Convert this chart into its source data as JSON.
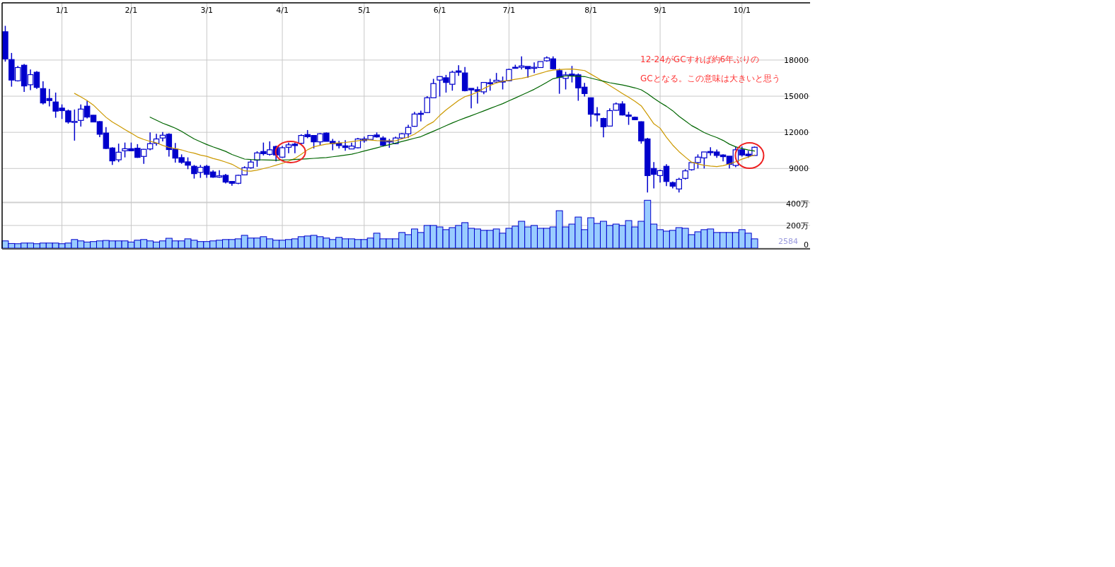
{
  "chart_data": [
    {
      "type": "candlestick",
      "color": "#0000cc",
      "categories": [
        null,
        null,
        null,
        null,
        null,
        null,
        null,
        null,
        null,
        "1/1",
        null,
        null,
        null,
        null,
        null,
        null,
        null,
        null,
        null,
        null,
        "2/1",
        null,
        null,
        null,
        null,
        null,
        null,
        null,
        null,
        null,
        null,
        null,
        "3/1",
        null,
        null,
        null,
        null,
        null,
        null,
        null,
        null,
        null,
        null,
        null,
        "4/1",
        null,
        null,
        null,
        null,
        null,
        null,
        null,
        null,
        null,
        null,
        null,
        null,
        "5/1",
        null,
        null,
        null,
        null,
        null,
        null,
        null,
        null,
        null,
        null,
        null,
        "6/1",
        null,
        null,
        null,
        null,
        null,
        null,
        null,
        null,
        null,
        null,
        "7/1",
        null,
        null,
        null,
        null,
        null,
        null,
        null,
        null,
        null,
        null,
        null,
        null,
        "8/1",
        null,
        null,
        null,
        null,
        null,
        null,
        null,
        null,
        null,
        null,
        "9/1",
        null,
        null,
        null,
        null,
        null,
        null,
        null,
        null,
        null,
        null,
        null,
        null,
        "10/1",
        null,
        null
      ],
      "ohlc": [
        [
          20350,
          20840,
          17870,
          18100
        ],
        [
          18040,
          18590,
          15790,
          16340
        ],
        [
          16280,
          17510,
          16220,
          17380
        ],
        [
          17570,
          17670,
          15360,
          15850
        ],
        [
          15950,
          17220,
          15500,
          16790
        ],
        [
          16990,
          17080,
          15600,
          15730
        ],
        [
          15630,
          16240,
          14320,
          14440
        ],
        [
          14810,
          15600,
          14150,
          14640
        ],
        [
          14520,
          15300,
          13210,
          13760
        ],
        [
          14010,
          14320,
          13110,
          13800
        ],
        [
          13780,
          13890,
          12720,
          12860
        ],
        [
          12820,
          13890,
          11310,
          12910
        ],
        [
          12990,
          14320,
          12480,
          13930
        ],
        [
          14170,
          14620,
          13150,
          13270
        ],
        [
          13420,
          13440,
          12840,
          12860
        ],
        [
          12890,
          12930,
          11600,
          11840
        ],
        [
          11940,
          12430,
          10620,
          10660
        ],
        [
          10700,
          10760,
          9290,
          9630
        ],
        [
          9720,
          11060,
          9530,
          10350
        ],
        [
          10470,
          11150,
          9920,
          10640
        ],
        [
          10640,
          11150,
          10430,
          10470
        ],
        [
          10680,
          11020,
          9880,
          9920
        ],
        [
          10000,
          10620,
          9390,
          10590
        ],
        [
          10620,
          11990,
          10510,
          11060
        ],
        [
          11090,
          11880,
          10900,
          11450
        ],
        [
          11530,
          12030,
          11250,
          11760
        ],
        [
          11840,
          11920,
          9980,
          10570
        ],
        [
          10610,
          11110,
          9490,
          9860
        ],
        [
          9900,
          10170,
          9390,
          9510
        ],
        [
          9550,
          9920,
          8940,
          9270
        ],
        [
          9180,
          9290,
          8160,
          8570
        ],
        [
          8670,
          9290,
          8220,
          9100
        ],
        [
          9180,
          9290,
          8220,
          8510
        ],
        [
          8710,
          8860,
          8220,
          8280
        ],
        [
          8280,
          8860,
          8220,
          8390
        ],
        [
          8430,
          8550,
          7750,
          7870
        ],
        [
          7920,
          7920,
          7570,
          7770
        ],
        [
          7770,
          8470,
          7690,
          8430
        ],
        [
          8470,
          9180,
          8430,
          9060
        ],
        [
          9060,
          9720,
          8980,
          9530
        ],
        [
          9690,
          10430,
          9140,
          10290
        ],
        [
          10410,
          11150,
          10080,
          10230
        ],
        [
          10170,
          11250,
          10080,
          10550
        ],
        [
          10820,
          10900,
          9590,
          10120
        ],
        [
          9940,
          10860,
          9880,
          10720
        ],
        [
          10760,
          11150,
          10270,
          10960
        ],
        [
          11020,
          11150,
          10270,
          10900
        ],
        [
          11090,
          11840,
          11020,
          11740
        ],
        [
          11820,
          12190,
          11510,
          11640
        ],
        [
          11740,
          11740,
          10660,
          11210
        ],
        [
          11210,
          11940,
          10900,
          11880
        ],
        [
          11940,
          11990,
          11250,
          11250
        ],
        [
          11250,
          11450,
          10510,
          11060
        ],
        [
          11090,
          11290,
          10660,
          10900
        ],
        [
          10880,
          11350,
          10470,
          10740
        ],
        [
          10620,
          11150,
          10620,
          10860
        ],
        [
          10720,
          11540,
          10660,
          11450
        ],
        [
          11450,
          11640,
          11150,
          11310
        ],
        [
          11410,
          11740,
          11410,
          11740
        ],
        [
          11780,
          11990,
          11560,
          11620
        ],
        [
          11530,
          11680,
          10820,
          10920
        ],
        [
          11290,
          11450,
          10720,
          11210
        ],
        [
          11060,
          11640,
          11020,
          11530
        ],
        [
          11530,
          11940,
          11450,
          11880
        ],
        [
          11880,
          12620,
          11530,
          12410
        ],
        [
          12500,
          13700,
          12460,
          13520
        ],
        [
          13580,
          13800,
          12910,
          13520
        ],
        [
          13640,
          15010,
          13600,
          14870
        ],
        [
          14870,
          16440,
          14870,
          16050
        ],
        [
          16340,
          16630,
          14970,
          16630
        ],
        [
          16530,
          16770,
          15300,
          16140
        ],
        [
          15990,
          17120,
          15460,
          16990
        ],
        [
          17100,
          17570,
          16690,
          16990
        ],
        [
          16930,
          17420,
          15400,
          15460
        ],
        [
          15650,
          15650,
          13990,
          15520
        ],
        [
          15540,
          15790,
          14380,
          15400
        ],
        [
          15360,
          16180,
          15170,
          16140
        ],
        [
          16120,
          16440,
          15460,
          16030
        ],
        [
          16180,
          16930,
          16100,
          16320
        ],
        [
          16260,
          16630,
          15560,
          16220
        ],
        [
          16280,
          17280,
          16240,
          17220
        ],
        [
          17400,
          17610,
          17320,
          17320
        ],
        [
          17400,
          18300,
          17220,
          17510
        ],
        [
          17470,
          17470,
          16530,
          17280
        ],
        [
          17320,
          17810,
          16930,
          17400
        ],
        [
          17380,
          17870,
          17380,
          17870
        ],
        [
          17940,
          18300,
          17870,
          18180
        ],
        [
          18100,
          18300,
          17220,
          17280
        ],
        [
          17120,
          17280,
          15200,
          16570
        ],
        [
          16480,
          17020,
          15560,
          16770
        ],
        [
          16830,
          17510,
          16140,
          16690
        ],
        [
          16770,
          16890,
          14620,
          15690
        ],
        [
          15750,
          16100,
          14970,
          15220
        ],
        [
          14870,
          14870,
          12460,
          13500
        ],
        [
          13540,
          14090,
          12910,
          13440
        ],
        [
          13150,
          13210,
          11580,
          12460
        ],
        [
          12520,
          13990,
          12520,
          13800
        ],
        [
          13830,
          14480,
          13800,
          14360
        ],
        [
          14360,
          14580,
          13400,
          13440
        ],
        [
          13440,
          13700,
          12620,
          13330
        ],
        [
          13250,
          13310,
          13010,
          13050
        ],
        [
          12880,
          12910,
          11060,
          11290
        ],
        [
          11450,
          11540,
          7000,
          8410
        ],
        [
          9000,
          9530,
          7340,
          8510
        ],
        [
          8410,
          8900,
          7830,
          8820
        ],
        [
          9180,
          9350,
          7530,
          7920
        ],
        [
          7830,
          7920,
          7340,
          7530
        ],
        [
          7300,
          8220,
          7000,
          8100
        ],
        [
          8180,
          8940,
          8080,
          8800
        ],
        [
          8900,
          9530,
          8820,
          9490
        ],
        [
          9490,
          10170,
          9000,
          9940
        ],
        [
          9880,
          10370,
          9000,
          10370
        ],
        [
          10410,
          10760,
          10080,
          10310
        ],
        [
          10370,
          10570,
          9880,
          10080
        ],
        [
          10120,
          10170,
          9590,
          9980
        ],
        [
          10020,
          10020,
          9000,
          9350
        ],
        [
          9250,
          10820,
          9100,
          10550
        ],
        [
          10550,
          10820,
          9980,
          10120
        ],
        [
          10190,
          10470,
          9880,
          10060
        ],
        [
          10080,
          10820,
          10080,
          10760
        ]
      ],
      "series": [
        {
          "type": "line",
          "color": "#cc9900",
          "values": [
            null,
            null,
            null,
            null,
            null,
            null,
            null,
            null,
            null,
            null,
            null,
            15230,
            14940,
            14640,
            14260,
            13750,
            13250,
            12860,
            12550,
            12230,
            11930,
            11610,
            11410,
            11250,
            11130,
            10920,
            10750,
            10650,
            10540,
            10380,
            10270,
            10110,
            10010,
            9830,
            9700,
            9530,
            9350,
            9060,
            8800,
            8770,
            8860,
            8990,
            9120,
            9270,
            9430,
            9600,
            9830,
            10180,
            10550,
            10800,
            10920,
            11020,
            11080,
            11120,
            11160,
            11230,
            11300,
            11380,
            11360,
            11310,
            11290,
            11290,
            11300,
            11450,
            11610,
            11850,
            12200,
            12590,
            12870,
            13400,
            13860,
            14250,
            14650,
            14960,
            15130,
            15340,
            15640,
            15890,
            16100,
            16240,
            16320,
            16400,
            16480,
            16590,
            16750,
            16900,
            17060,
            17170,
            17210,
            17240,
            17260,
            17200,
            17130,
            16830,
            16530,
            16200,
            15880,
            15560,
            15230,
            14910,
            14580,
            14200,
            13470,
            12710,
            12340,
            11590,
            10940,
            10400,
            9950,
            9520,
            9380,
            9260,
            9200,
            9160,
            9230,
            9380,
            9560,
            9770,
            9950,
            10120
          ]
        },
        {
          "type": "line",
          "color": "#006600",
          "values": [
            null,
            null,
            null,
            null,
            null,
            null,
            null,
            null,
            null,
            null,
            null,
            null,
            null,
            null,
            null,
            null,
            null,
            null,
            null,
            null,
            null,
            null,
            null,
            13260,
            13010,
            12760,
            12560,
            12350,
            12080,
            11760,
            11450,
            11220,
            10990,
            10790,
            10610,
            10420,
            10160,
            9970,
            9780,
            9740,
            9720,
            9710,
            9700,
            9690,
            9700,
            9720,
            9740,
            9770,
            9800,
            9840,
            9880,
            9910,
            9970,
            10040,
            10110,
            10180,
            10310,
            10450,
            10580,
            10710,
            10850,
            10980,
            11110,
            11240,
            11370,
            11510,
            11640,
            11870,
            12090,
            12320,
            12550,
            12780,
            12990,
            13190,
            13380,
            13580,
            13780,
            13980,
            14180,
            14380,
            14620,
            14850,
            15090,
            15330,
            15570,
            15850,
            16150,
            16450,
            16570,
            16690,
            16670,
            16650,
            16630,
            16500,
            16370,
            16240,
            16120,
            16020,
            15930,
            15820,
            15690,
            15530,
            15210,
            14830,
            14470,
            14160,
            13790,
            13330,
            12950,
            12560,
            12280,
            11980,
            11760,
            11570,
            11330,
            11020,
            10800,
            10650,
            10540,
            10450
          ]
        }
      ],
      "ylim": [
        6200,
        22750
      ],
      "yticks": [
        9000,
        12000,
        15000,
        18000
      ],
      "grid": true,
      "annotations": [
        "12-24がGCすれば約6年ぶりの",
        "GCとなる。この意味は大きいと思う"
      ]
    },
    {
      "type": "bar",
      "color": "#99ccff",
      "categories": [
        null,
        null,
        null,
        null,
        null,
        null,
        null,
        null,
        null,
        null,
        null,
        null,
        null,
        null,
        null,
        null,
        null,
        null,
        null,
        null,
        null,
        null,
        null,
        null,
        null,
        null,
        null,
        null,
        null,
        null,
        null,
        null,
        null,
        null,
        null,
        null,
        null,
        null,
        null,
        null,
        null,
        null,
        null,
        null,
        null,
        null,
        null,
        null,
        null,
        null,
        null,
        null,
        null,
        null,
        null,
        null,
        null,
        null,
        null,
        null,
        null,
        null,
        null,
        null,
        null,
        null,
        null,
        null,
        null,
        null,
        null,
        null,
        null,
        null,
        null,
        null,
        null,
        null,
        null,
        null,
        null,
        null,
        null,
        null,
        null,
        null,
        null,
        null,
        null,
        null,
        null,
        null,
        null,
        null,
        null,
        null,
        null,
        null,
        null,
        null,
        null,
        null,
        null,
        null,
        null,
        null,
        null,
        null,
        null,
        null,
        null,
        null,
        null,
        null,
        null,
        null,
        null,
        null,
        null,
        null
      ],
      "values": [
        64,
        41,
        39,
        45,
        45,
        39,
        45,
        45,
        45,
        39,
        45,
        76,
        64,
        54,
        58,
        64,
        68,
        64,
        64,
        64,
        54,
        70,
        76,
        64,
        54,
        64,
        87,
        64,
        64,
        82,
        70,
        58,
        58,
        64,
        70,
        76,
        76,
        82,
        113,
        89,
        89,
        101,
        82,
        70,
        70,
        76,
        82,
        101,
        107,
        113,
        101,
        89,
        76,
        95,
        82,
        82,
        76,
        76,
        89,
        132,
        82,
        82,
        82,
        138,
        119,
        169,
        138,
        200,
        200,
        187,
        163,
        181,
        200,
        225,
        175,
        169,
        157,
        157,
        169,
        132,
        175,
        194,
        237,
        187,
        200,
        175,
        175,
        187,
        330,
        187,
        212,
        274,
        163,
        268,
        218,
        237,
        200,
        212,
        200,
        243,
        187,
        237,
        422,
        212,
        163,
        150,
        157,
        181,
        175,
        119,
        144,
        163,
        169,
        138,
        138,
        138,
        138,
        163,
        132,
        82
      ],
      "ylim": [
        0,
        430
      ],
      "yticks": [
        0,
        {
          "value": 200,
          "label": "200万"
        },
        {
          "value": 400,
          "label": "400万"
        }
      ],
      "grid": "y",
      "tick_labels": "y",
      "annotations": [
        "2584"
      ]
    }
  ]
}
